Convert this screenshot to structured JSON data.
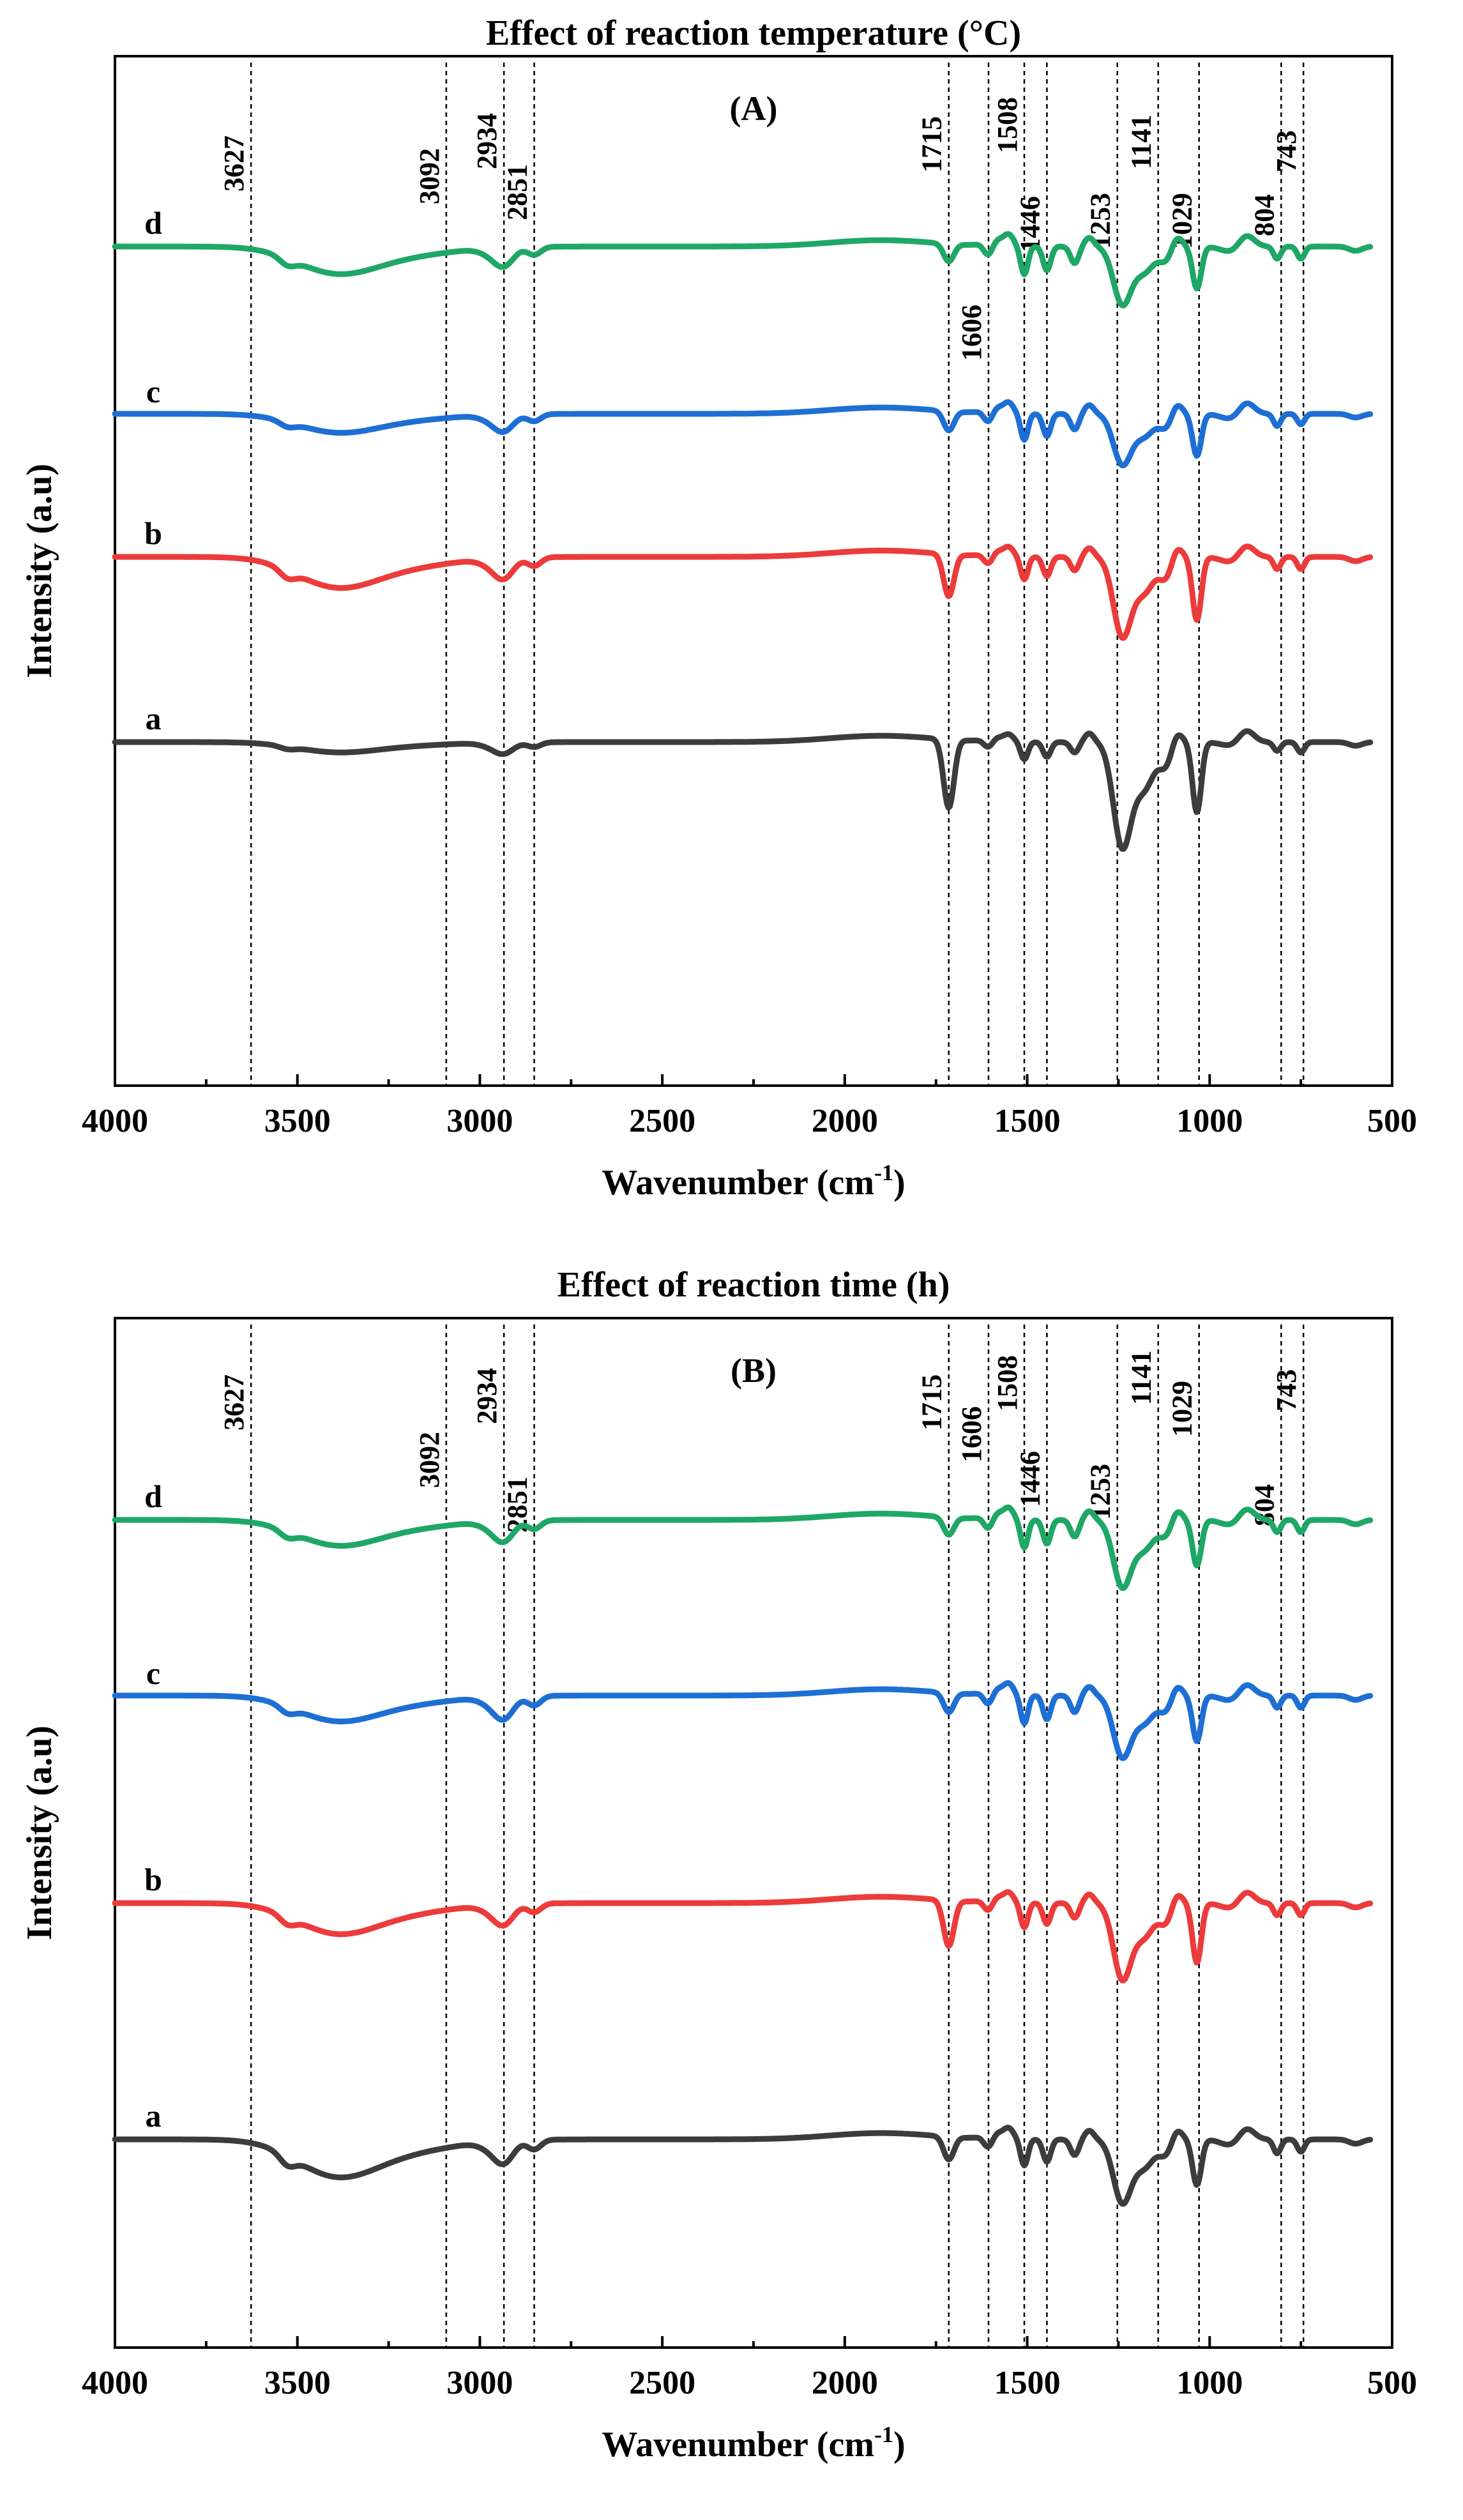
{
  "chart_data": [
    {
      "type": "line",
      "title": "Effect of reaction temperature (°C)",
      "panel_label": "(A)",
      "xlabel": "Wavenumber (cm",
      "xlabel_sup": "-1",
      "xlabel_close": ")",
      "ylabel": "Intensity (a.u)",
      "xlim": [
        4000,
        500
      ],
      "x_ticks": [
        4000,
        3500,
        3000,
        2500,
        2000,
        1500,
        1000,
        500
      ],
      "x_tick_labels": [
        "4000",
        "3500",
        "3000",
        "2500",
        "2000",
        "1500",
        "1000",
        "500"
      ],
      "peaks": [
        {
          "x": 3627,
          "label": "3627"
        },
        {
          "x": 3092,
          "label": "3092"
        },
        {
          "x": 2934,
          "label": "2934"
        },
        {
          "x": 2851,
          "label": "2851"
        },
        {
          "x": 1715,
          "label": "1715"
        },
        {
          "x": 1606,
          "label": "1606"
        },
        {
          "x": 1508,
          "label": "1508"
        },
        {
          "x": 1446,
          "label": "1446"
        },
        {
          "x": 1253,
          "label": "1253"
        },
        {
          "x": 1141,
          "label": "1141"
        },
        {
          "x": 1029,
          "label": "1029"
        },
        {
          "x": 804,
          "label": "804"
        },
        {
          "x": 743,
          "label": "743"
        }
      ],
      "series": [
        {
          "name": "a",
          "color": "#3c3c3c",
          "depths": {
            "oh": 0.3,
            "ch": 0.3,
            "co": 1.95,
            "ring": 0.5,
            "c1253": 2.9,
            "c1029": 2.0,
            "c804": 0.25,
            "c743": 0.3
          }
        },
        {
          "name": "b",
          "color": "#ec3b3b",
          "depths": {
            "oh": 0.9,
            "ch": 0.55,
            "co": 1.2,
            "ring": 0.65,
            "c1253": 2.2,
            "c1029": 1.8,
            "c804": 0.35,
            "c743": 0.35
          }
        },
        {
          "name": "c",
          "color": "#1e6fd4",
          "depths": {
            "oh": 0.55,
            "ch": 0.45,
            "co": 0.55,
            "ring": 0.75,
            "c1253": 1.4,
            "c1029": 1.2,
            "c804": 0.35,
            "c743": 0.3
          }
        },
        {
          "name": "d",
          "color": "#1fa765",
          "depths": {
            "oh": 0.8,
            "ch": 0.5,
            "co": 0.5,
            "ring": 0.8,
            "c1253": 1.6,
            "c1029": 1.2,
            "c804": 0.35,
            "c743": 0.35
          }
        }
      ]
    },
    {
      "type": "line",
      "title": "Effect of reaction time (h)",
      "panel_label": "(B)",
      "xlabel": "Wavenumber (cm",
      "xlabel_sup": "-1",
      "xlabel_close": ")",
      "ylabel": "Intensity (a.u)",
      "xlim": [
        4000,
        500
      ],
      "x_ticks": [
        4000,
        3500,
        3000,
        2500,
        2000,
        1500,
        1000,
        500
      ],
      "x_tick_labels": [
        "4000",
        "3500",
        "3000",
        "2500",
        "2000",
        "1500",
        "1000",
        "500"
      ],
      "peaks": [
        {
          "x": 3627,
          "label": "3627"
        },
        {
          "x": 3092,
          "label": "3092"
        },
        {
          "x": 2934,
          "label": "2934"
        },
        {
          "x": 2851,
          "label": "2851"
        },
        {
          "x": 1715,
          "label": "1715"
        },
        {
          "x": 1606,
          "label": "1606"
        },
        {
          "x": 1508,
          "label": "1508"
        },
        {
          "x": 1446,
          "label": "1446"
        },
        {
          "x": 1253,
          "label": "1253"
        },
        {
          "x": 1141,
          "label": "1141"
        },
        {
          "x": 1029,
          "label": "1029"
        },
        {
          "x": 804,
          "label": "804"
        },
        {
          "x": 743,
          "label": "743"
        }
      ],
      "series": [
        {
          "name": "a",
          "color": "#3c3c3c",
          "depths": {
            "oh": 1.1,
            "ch": 0.6,
            "co": 0.65,
            "ring": 0.75,
            "c1253": 1.75,
            "c1029": 1.3,
            "c804": 0.4,
            "c743": 0.35
          }
        },
        {
          "name": "b",
          "color": "#ec3b3b",
          "depths": {
            "oh": 0.9,
            "ch": 0.55,
            "co": 1.3,
            "ring": 0.7,
            "c1253": 2.1,
            "c1029": 1.7,
            "c804": 0.35,
            "c743": 0.35
          }
        },
        {
          "name": "c",
          "color": "#1e6fd4",
          "depths": {
            "oh": 0.75,
            "ch": 0.6,
            "co": 0.55,
            "ring": 0.8,
            "c1253": 1.7,
            "c1029": 1.3,
            "c804": 0.35,
            "c743": 0.35
          }
        },
        {
          "name": "d",
          "color": "#1fa765",
          "depths": {
            "oh": 0.75,
            "ch": 0.55,
            "co": 0.5,
            "ring": 0.8,
            "c1253": 1.85,
            "c1029": 1.3,
            "c804": 0.35,
            "c743": 0.35
          }
        }
      ]
    }
  ]
}
